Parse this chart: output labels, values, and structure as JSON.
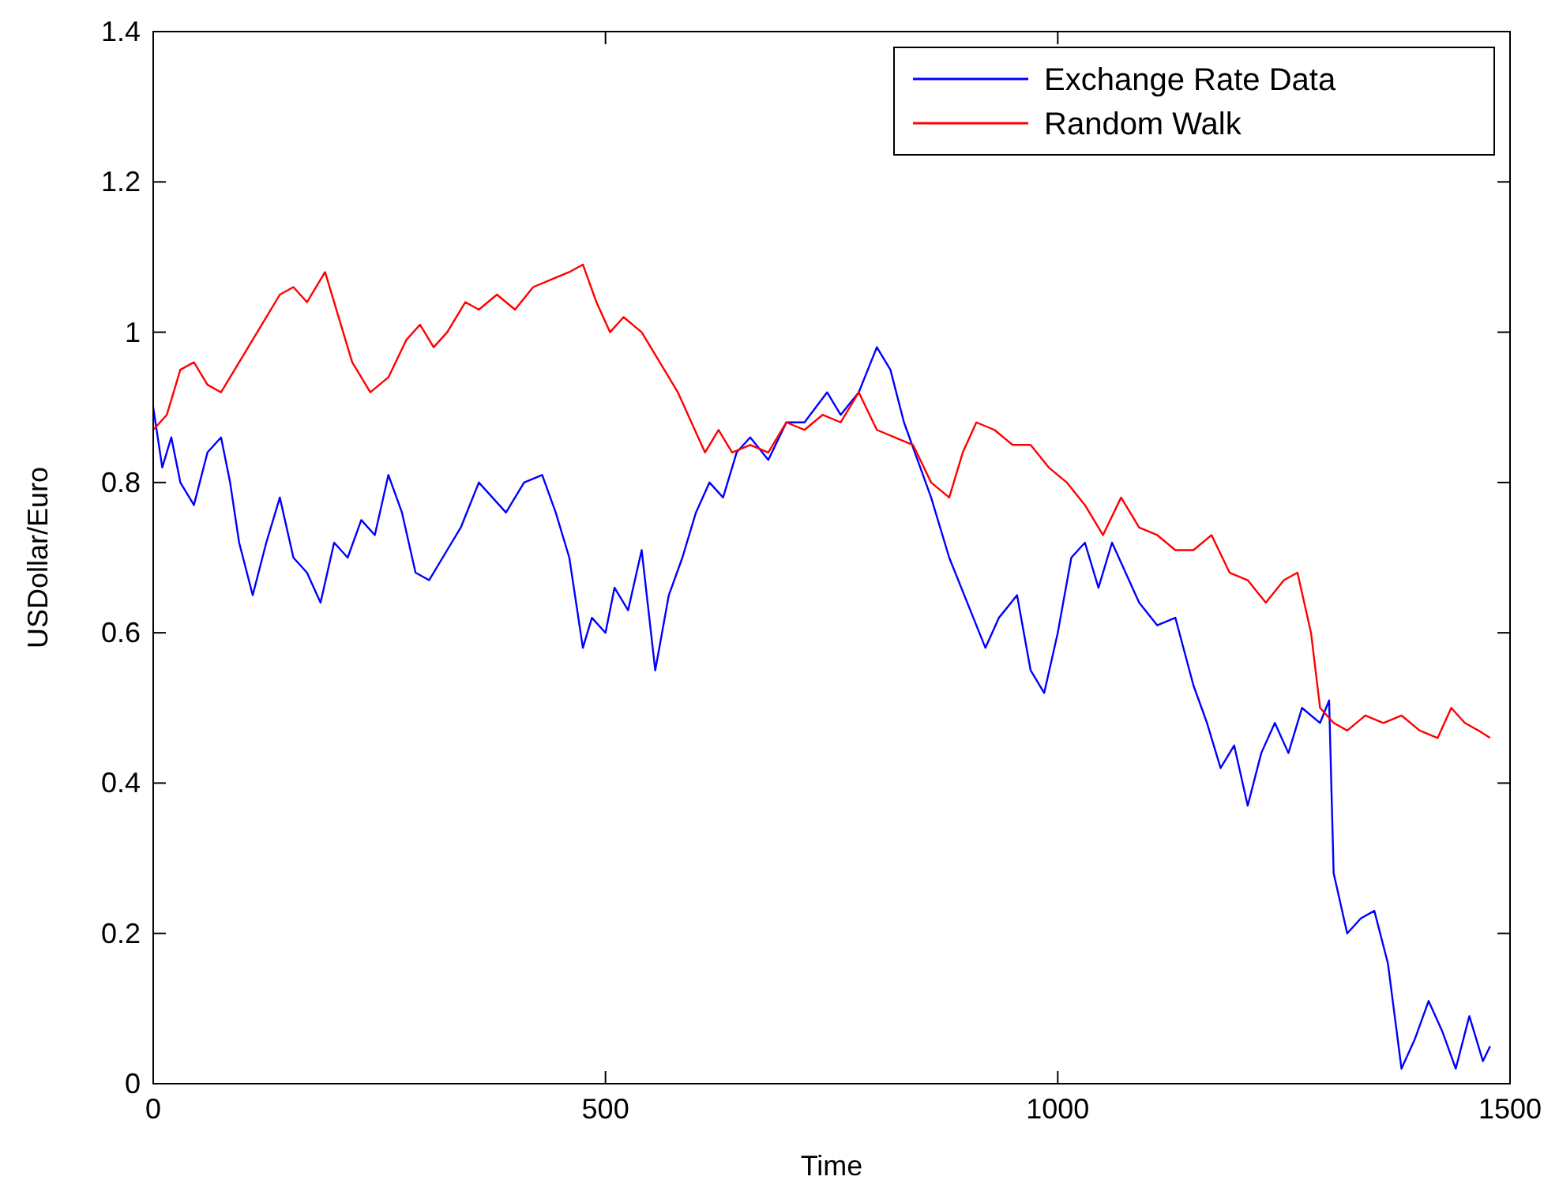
{
  "chart_data": {
    "type": "line",
    "xlabel": "Time",
    "ylabel": "USDollar/Euro",
    "xlim": [
      0,
      1500
    ],
    "xticks": [
      0,
      500,
      1000,
      1500
    ],
    "ylim": [
      0,
      1.4
    ],
    "yticks": [
      0,
      0.2,
      0.4,
      0.6,
      0.8,
      1,
      1.2,
      1.4
    ],
    "grid": false,
    "legend": "top right",
    "line_style": "solid",
    "marker": "none",
    "series": [
      {
        "name": "Exchange Rate Data",
        "color": "#0000ff",
        "x": [
          0,
          10,
          20,
          30,
          45,
          60,
          75,
          85,
          95,
          110,
          125,
          140,
          155,
          170,
          185,
          200,
          215,
          230,
          245,
          260,
          275,
          290,
          305,
          320,
          340,
          360,
          375,
          390,
          410,
          430,
          445,
          460,
          475,
          485,
          500,
          510,
          525,
          540,
          555,
          570,
          585,
          600,
          615,
          630,
          645,
          660,
          680,
          700,
          720,
          745,
          760,
          780,
          800,
          815,
          830,
          845,
          860,
          880,
          900,
          920,
          935,
          955,
          970,
          985,
          1000,
          1015,
          1030,
          1045,
          1060,
          1075,
          1090,
          1110,
          1130,
          1150,
          1165,
          1180,
          1195,
          1210,
          1225,
          1240,
          1255,
          1270,
          1290,
          1300,
          1305,
          1320,
          1335,
          1350,
          1365,
          1380,
          1395,
          1410,
          1425,
          1440,
          1455,
          1470,
          1478
        ],
        "values": [
          0.9,
          0.82,
          0.86,
          0.8,
          0.77,
          0.84,
          0.86,
          0.8,
          0.72,
          0.65,
          0.72,
          0.78,
          0.7,
          0.68,
          0.64,
          0.72,
          0.7,
          0.75,
          0.73,
          0.81,
          0.76,
          0.68,
          0.67,
          0.7,
          0.74,
          0.8,
          0.78,
          0.76,
          0.8,
          0.81,
          0.76,
          0.7,
          0.58,
          0.62,
          0.6,
          0.66,
          0.63,
          0.71,
          0.55,
          0.65,
          0.7,
          0.76,
          0.8,
          0.78,
          0.84,
          0.86,
          0.83,
          0.88,
          0.88,
          0.92,
          0.89,
          0.92,
          0.98,
          0.95,
          0.88,
          0.83,
          0.78,
          0.7,
          0.64,
          0.58,
          0.62,
          0.65,
          0.55,
          0.52,
          0.6,
          0.7,
          0.72,
          0.66,
          0.72,
          0.68,
          0.64,
          0.61,
          0.62,
          0.53,
          0.48,
          0.42,
          0.45,
          0.37,
          0.44,
          0.48,
          0.44,
          0.5,
          0.48,
          0.51,
          0.28,
          0.2,
          0.22,
          0.23,
          0.16,
          0.02,
          0.06,
          0.11,
          0.07,
          0.02,
          0.09,
          0.03,
          0.05
        ]
      },
      {
        "name": "Random Walk",
        "color": "#ff0000",
        "x": [
          0,
          15,
          30,
          45,
          60,
          75,
          90,
          110,
          125,
          140,
          155,
          170,
          190,
          205,
          220,
          240,
          260,
          280,
          295,
          310,
          325,
          345,
          360,
          380,
          400,
          420,
          440,
          460,
          475,
          490,
          505,
          520,
          540,
          560,
          580,
          595,
          610,
          625,
          640,
          660,
          680,
          700,
          720,
          740,
          760,
          780,
          800,
          820,
          840,
          860,
          880,
          895,
          910,
          930,
          950,
          970,
          990,
          1010,
          1030,
          1050,
          1070,
          1090,
          1110,
          1130,
          1150,
          1170,
          1190,
          1210,
          1230,
          1250,
          1265,
          1280,
          1290,
          1305,
          1320,
          1340,
          1360,
          1380,
          1400,
          1420,
          1435,
          1450,
          1465,
          1478
        ],
        "values": [
          0.87,
          0.89,
          0.95,
          0.96,
          0.93,
          0.92,
          0.95,
          0.99,
          1.02,
          1.05,
          1.06,
          1.04,
          1.08,
          1.02,
          0.96,
          0.92,
          0.94,
          0.99,
          1.01,
          0.98,
          1,
          1.04,
          1.03,
          1.05,
          1.03,
          1.06,
          1.07,
          1.08,
          1.09,
          1.04,
          1,
          1.02,
          1,
          0.96,
          0.92,
          0.88,
          0.84,
          0.87,
          0.84,
          0.85,
          0.84,
          0.88,
          0.87,
          0.89,
          0.88,
          0.92,
          0.87,
          0.86,
          0.85,
          0.8,
          0.78,
          0.84,
          0.88,
          0.87,
          0.85,
          0.85,
          0.82,
          0.8,
          0.77,
          0.73,
          0.78,
          0.74,
          0.73,
          0.71,
          0.71,
          0.73,
          0.68,
          0.67,
          0.64,
          0.67,
          0.68,
          0.6,
          0.5,
          0.48,
          0.47,
          0.49,
          0.48,
          0.49,
          0.47,
          0.46,
          0.5,
          0.48,
          0.47,
          0.46
        ]
      }
    ]
  }
}
